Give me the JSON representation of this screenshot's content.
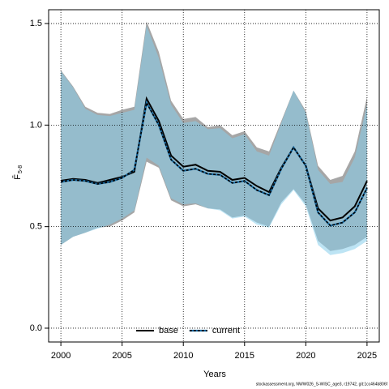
{
  "chart_data": {
    "type": "line",
    "xlabel": "Years",
    "ylabel": "F̄",
    "ylabel_sub": "5-8",
    "footnote": "stockassessment.org, NWW026_S-WISC_age3, r19742, git:1cc464b806f",
    "x": [
      2000,
      2001,
      2002,
      2003,
      2004,
      2005,
      2006,
      2007,
      2008,
      2009,
      2010,
      2011,
      2012,
      2013,
      2014,
      2015,
      2016,
      2017,
      2018,
      2019,
      2020,
      2021,
      2022,
      2023,
      2024,
      2025
    ],
    "xlim": [
      1999,
      2026
    ],
    "xticks": [
      2000,
      2005,
      2010,
      2015,
      2020,
      2025
    ],
    "ylim": [
      -0.068,
      1.568
    ],
    "yticks": [
      {
        "value": 0,
        "label": "0.0"
      },
      0.5,
      {
        "value": 1,
        "label": "1.0"
      },
      1.5
    ],
    "grid": true,
    "legend": "bottom",
    "series": [
      {
        "name": "base",
        "color": "#000000",
        "band_color": "#969696",
        "dash": false,
        "values": [
          0.726,
          0.735,
          0.73,
          0.715,
          0.73,
          0.745,
          0.77,
          1.13,
          1.02,
          0.85,
          0.795,
          0.805,
          0.775,
          0.77,
          0.73,
          0.74,
          0.7,
          0.67,
          0.79,
          0.89,
          0.8,
          0.59,
          0.53,
          0.545,
          0.6,
          0.725
        ],
        "upper": [
          1.27,
          1.19,
          1.09,
          1.06,
          1.055,
          1.075,
          1.09,
          1.51,
          1.36,
          1.12,
          1.03,
          1.04,
          0.99,
          1.0,
          0.95,
          0.97,
          0.89,
          0.87,
          1.02,
          1.17,
          1.07,
          0.8,
          0.73,
          0.75,
          0.87,
          1.14
        ],
        "lower": [
          0.41,
          0.45,
          0.47,
          0.495,
          0.5,
          0.53,
          0.57,
          0.82,
          0.79,
          0.63,
          0.6,
          0.61,
          0.59,
          0.585,
          0.545,
          0.555,
          0.52,
          0.5,
          0.62,
          0.685,
          0.61,
          0.43,
          0.38,
          0.39,
          0.41,
          0.45
        ]
      },
      {
        "name": "current",
        "color": "#1a6fa8",
        "band_color": "#87ceeb",
        "dash": true,
        "values": [
          0.72,
          0.73,
          0.725,
          0.71,
          0.72,
          0.74,
          0.78,
          1.11,
          1.0,
          0.83,
          0.775,
          0.785,
          0.76,
          0.755,
          0.715,
          0.725,
          0.68,
          0.655,
          0.785,
          0.89,
          0.8,
          0.57,
          0.505,
          0.52,
          0.57,
          0.69
        ],
        "upper": [
          1.265,
          1.185,
          1.08,
          1.05,
          1.045,
          1.06,
          1.075,
          1.49,
          1.33,
          1.1,
          1.01,
          1.02,
          0.98,
          0.985,
          0.935,
          0.955,
          0.87,
          0.85,
          1.01,
          1.17,
          1.06,
          0.78,
          0.71,
          0.72,
          0.84,
          1.1
        ],
        "lower": [
          0.41,
          0.45,
          0.47,
          0.49,
          0.51,
          0.54,
          0.58,
          0.84,
          0.8,
          0.64,
          0.61,
          0.615,
          0.59,
          0.58,
          0.54,
          0.55,
          0.51,
          0.495,
          0.61,
          0.68,
          0.6,
          0.41,
          0.36,
          0.37,
          0.39,
          0.43
        ]
      }
    ]
  }
}
